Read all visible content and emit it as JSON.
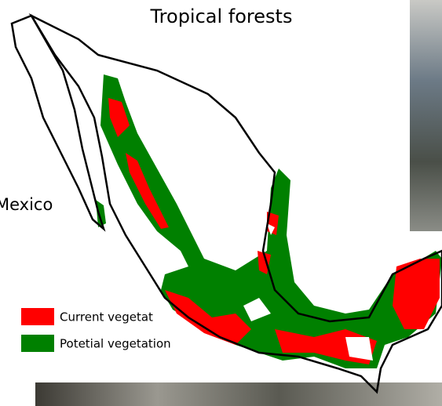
{
  "title": "Tropical forests",
  "place_label": "Mexico",
  "legend": [
    {
      "label": "Current vegetat",
      "color": "#ff0000"
    },
    {
      "label": "Potetial vegetation",
      "color": "#008000"
    }
  ]
}
